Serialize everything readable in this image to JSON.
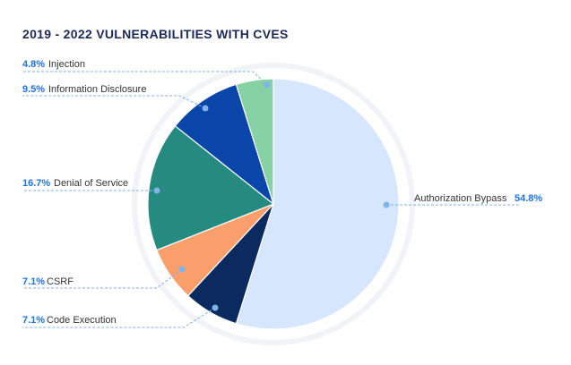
{
  "chart_data": {
    "type": "pie",
    "title": "2019 - 2022 VULNERABILITIES WITH CVES",
    "slices": [
      {
        "label": "Authorization Bypass",
        "percent_label": "54.8%",
        "value": 54.8,
        "color": "#d6e6fc"
      },
      {
        "label": "Code Execution",
        "percent_label": "7.1%",
        "value": 7.1,
        "color": "#0b2a60"
      },
      {
        "label": "CSRF",
        "percent_label": "7.1%",
        "value": 7.1,
        "color": "#fa9f6b"
      },
      {
        "label": "Denial of Service",
        "percent_label": "16.7%",
        "value": 16.7,
        "color": "#258b80"
      },
      {
        "label": "Information Disclosure",
        "percent_label": "9.5%",
        "value": 9.5,
        "color": "#0a45aa"
      },
      {
        "label": "Injection",
        "percent_label": "4.8%",
        "value": 4.8,
        "color": "#86d2a4"
      }
    ],
    "legend": "none",
    "colors": {
      "percent_text": "#1a73e8",
      "leader_line": "#7fb3ea",
      "halo": "#f1f3f7"
    }
  }
}
